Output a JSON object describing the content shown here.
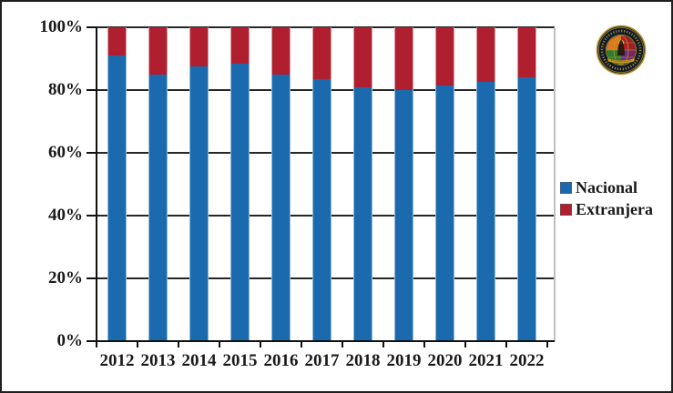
{
  "chart_data": {
    "type": "bar",
    "variant": "stacked-percent",
    "title": "",
    "xlabel": "",
    "ylabel": "",
    "categories": [
      "2012",
      "2013",
      "2014",
      "2015",
      "2016",
      "2017",
      "2018",
      "2019",
      "2020",
      "2021",
      "2022"
    ],
    "series": [
      {
        "name": "Nacional",
        "color": "#1a6aad",
        "edge_color": "#8fb8d9",
        "values": [
          91,
          85,
          87.5,
          88.5,
          85,
          83.5,
          81,
          80,
          81.5,
          82.5,
          84
        ]
      },
      {
        "name": "Extranjera",
        "color": "#b01f2f",
        "edge_color": "#d79aa2",
        "values": [
          9,
          15,
          12.5,
          11.5,
          15,
          16.5,
          19,
          20,
          18.5,
          17.5,
          16
        ]
      }
    ],
    "ylim": [
      0,
      100
    ],
    "y_ticks": [
      {
        "value": 0,
        "label": "0%"
      },
      {
        "value": 20,
        "label": "20%"
      },
      {
        "value": 40,
        "label": "40%"
      },
      {
        "value": 60,
        "label": "60%"
      },
      {
        "value": 80,
        "label": "80%"
      },
      {
        "value": 100,
        "label": "100%"
      }
    ],
    "grid": true,
    "legend_position": "right"
  },
  "legend": {
    "items": [
      {
        "label": "Nacional",
        "color": "#1a6aad"
      },
      {
        "label": "Extranjera",
        "color": "#b01f2f"
      }
    ]
  },
  "logo": {
    "icon": "organization-seal",
    "shape": "circular seal with gold ring text, multicolor emblem center and gold banner",
    "colors": {
      "background": "#101c2c",
      "ring_gold": "#c9a227",
      "quarter_top_left": "#d97a1e",
      "quarter_top_right": "#b02025",
      "quarter_bottom_left": "#2e7d32",
      "quarter_bottom_right": "#6a2e8f",
      "figure": "#2b1a10"
    }
  },
  "frame": {
    "border_color": "#1f1f1f",
    "background": "#ffffff"
  }
}
